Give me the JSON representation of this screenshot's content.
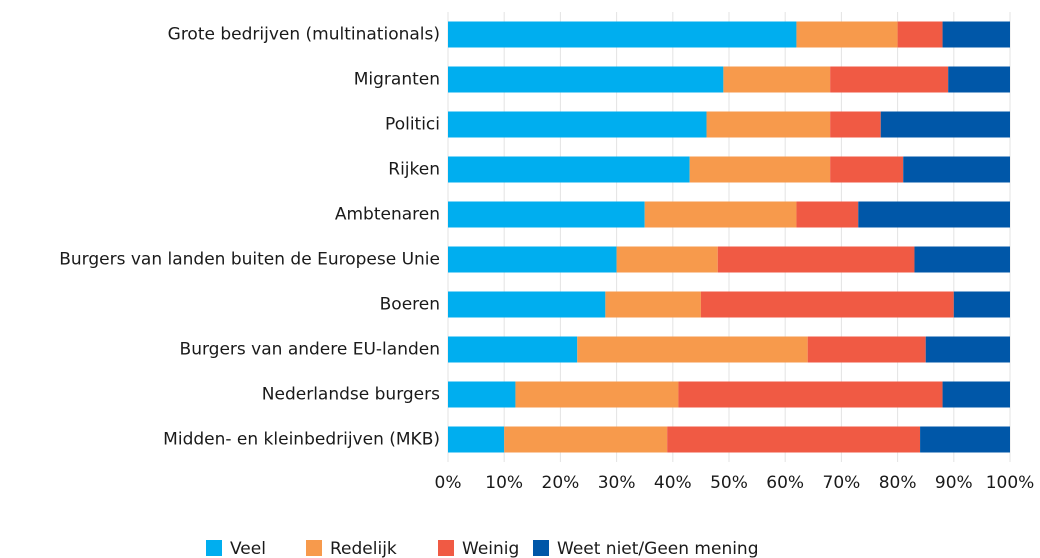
{
  "chart_data": {
    "type": "stacked_barh",
    "categories": [
      "Grote bedrijven (multinationals)",
      "Migranten",
      "Politici",
      "Rijken",
      "Ambtenaren",
      "Burgers van landen buiten de Europese Unie",
      "Boeren",
      "Burgers van andere EU-landen",
      "Nederlandse burgers",
      "Midden- en kleinbedrijven (MKB)"
    ],
    "series": [
      {
        "name": "Veel",
        "color": "#00aeef",
        "values": [
          62,
          49,
          46,
          43,
          35,
          30,
          28,
          23,
          12,
          10
        ]
      },
      {
        "name": "Redelijk",
        "color": "#f79a4c",
        "values": [
          18,
          19,
          22,
          25,
          27,
          18,
          17,
          41,
          29,
          29
        ]
      },
      {
        "name": "Weinig",
        "color": "#f05a44",
        "values": [
          8,
          21,
          9,
          13,
          11,
          35,
          45,
          21,
          47,
          45
        ]
      },
      {
        "name": "Weet niet/Geen mening",
        "color": "#0057a8",
        "values": [
          12,
          11,
          23,
          19,
          27,
          17,
          10,
          15,
          12,
          16
        ]
      }
    ],
    "xlim": [
      0,
      100
    ],
    "xticks": [
      {
        "value": 0,
        "label": "0%"
      },
      {
        "value": 10,
        "label": "10%"
      },
      {
        "value": 20,
        "label": "20%"
      },
      {
        "value": 30,
        "label": "30%"
      },
      {
        "value": 40,
        "label": "40%"
      },
      {
        "value": 50,
        "label": "50%"
      },
      {
        "value": 60,
        "label": "60%"
      },
      {
        "value": 70,
        "label": "70%"
      },
      {
        "value": 80,
        "label": "80%"
      },
      {
        "value": 90,
        "label": "90%"
      },
      {
        "value": 100,
        "label": "100%"
      }
    ],
    "grid": true,
    "legend": "bottom"
  }
}
